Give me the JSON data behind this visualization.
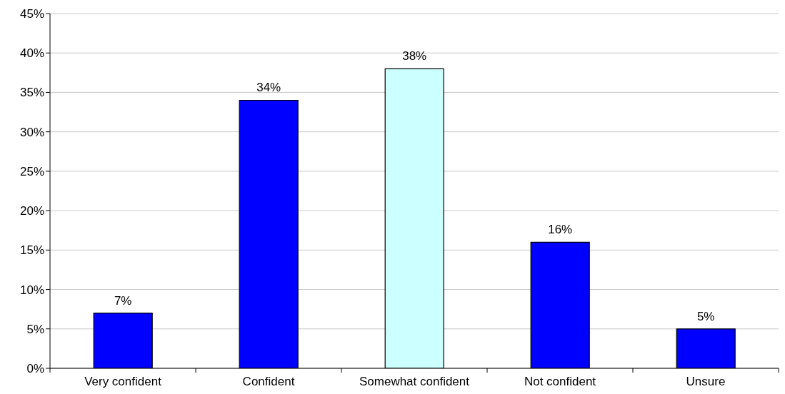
{
  "chart_data": {
    "type": "bar",
    "categories": [
      "Very confident",
      "Confident",
      "Somewhat confident",
      "Not confident",
      "Unsure"
    ],
    "values": [
      7,
      34,
      38,
      16,
      5
    ],
    "colors": [
      "#0000ff",
      "#0000ff",
      "#ccffff",
      "#0000ff",
      "#0000ff"
    ],
    "value_labels": [
      "7%",
      "34%",
      "38%",
      "16%",
      "5%"
    ],
    "ylim": [
      0,
      45
    ],
    "yticks": [
      {
        "value": 0,
        "label": "0%"
      },
      {
        "value": 5,
        "label": "5%"
      },
      {
        "value": 10,
        "label": "10%"
      },
      {
        "value": 15,
        "label": "15%"
      },
      {
        "value": 20,
        "label": "20%"
      },
      {
        "value": 25,
        "label": "25%"
      },
      {
        "value": 30,
        "label": "30%"
      },
      {
        "value": 35,
        "label": "35%"
      },
      {
        "value": 40,
        "label": "40%"
      },
      {
        "value": 45,
        "label": "45%"
      }
    ],
    "grid": "y"
  }
}
